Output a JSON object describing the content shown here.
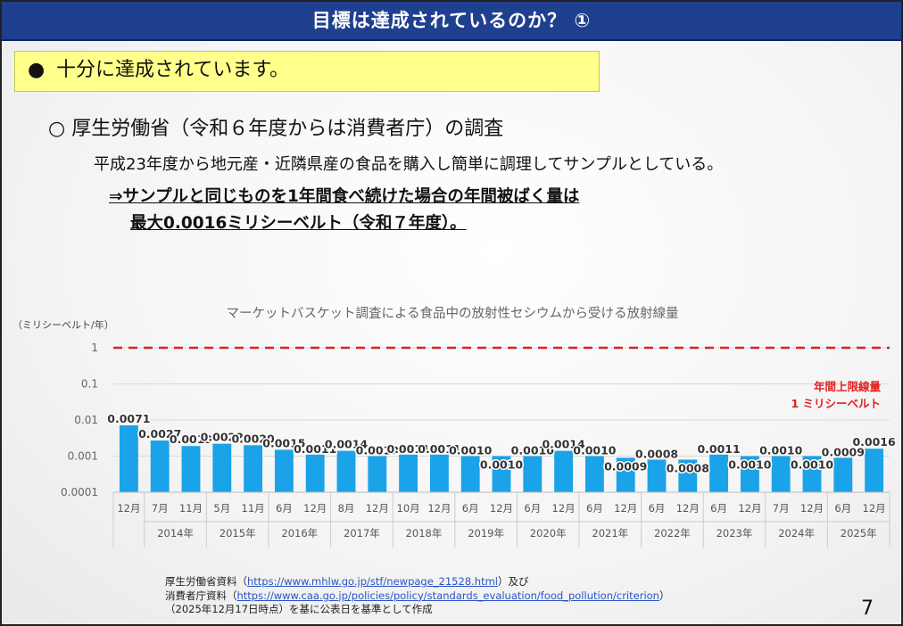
{
  "header": {
    "title": "目標は達成されているのか？ ①"
  },
  "highlight": {
    "bullet": "●",
    "text": "十分に達成されています。"
  },
  "section": {
    "heading": "○ 厚生労働省（令和６年度からは消費者庁）の調査",
    "description": "平成23年度から地元産・近隣県産の食品を購入し簡単に調理してサンプルとしている。",
    "conclusion_line1": "⇒サンプルと同じものを1年間食べ続けた場合の年間被ばく量は",
    "conclusion_line2": "最大0.0016ミリシーベルト（令和７年度）。"
  },
  "chart_data": {
    "type": "bar",
    "title": "マーケットバスケット調査による食品中の放射性セシウムから受ける放射線量",
    "ylabel": "（ミリシーベルト/年）",
    "yscale": "log",
    "ylim": [
      0.0001,
      1
    ],
    "yticks": [
      "1",
      "0.1",
      "0.01",
      "0.001",
      "0.0001"
    ],
    "ytick_values": [
      1,
      0.1,
      0.01,
      0.001,
      0.0001
    ],
    "bar_color": "#1aa3e8",
    "reference_line": {
      "value": 1,
      "color": "#e02020",
      "label1": "年間上限線量",
      "label2": "1 ミリシーベルト"
    },
    "categories": [
      "12月",
      "7月",
      "11月",
      "5月",
      "11月",
      "6月",
      "12月",
      "8月",
      "12月",
      "10月",
      "12月",
      "6月",
      "12月",
      "6月",
      "12月",
      "6月",
      "12月",
      "6月",
      "12月",
      "6月",
      "12月",
      "7月",
      "12月",
      "6月",
      "12月"
    ],
    "values": [
      0.0071,
      0.0027,
      0.0019,
      0.0022,
      0.002,
      0.0015,
      0.0011,
      0.0014,
      0.001,
      0.0011,
      0.0011,
      0.001,
      0.001,
      0.001,
      0.0014,
      0.001,
      0.0009,
      0.0008,
      0.0008,
      0.0011,
      0.001,
      0.001,
      0.001,
      0.0009,
      0.0016
    ],
    "value_labels": [
      "0.0071",
      "0.0027",
      "0.0019",
      "0.0022",
      "0.0020",
      "0.0015",
      "0.0011",
      "0.0014",
      "0.0010",
      "0.0011",
      "0.0011",
      "0.0010",
      "0.0010",
      "0.0010",
      "0.0014",
      "0.0010",
      "0.0009",
      "0.0008",
      "0.0008",
      "0.0011",
      "0.0010",
      "0.0010",
      "0.0010",
      "0.0009",
      "0.0016"
    ],
    "year_groups": [
      {
        "label": "",
        "count": 1
      },
      {
        "label": "2014年",
        "count": 2
      },
      {
        "label": "2015年",
        "count": 2
      },
      {
        "label": "2016年",
        "count": 2
      },
      {
        "label": "2017年",
        "count": 2
      },
      {
        "label": "2018年",
        "count": 2
      },
      {
        "label": "2019年",
        "count": 2
      },
      {
        "label": "2020年",
        "count": 2
      },
      {
        "label": "2021年",
        "count": 2
      },
      {
        "label": "2022年",
        "count": 2
      },
      {
        "label": "2023年",
        "count": 2
      },
      {
        "label": "2024年",
        "count": 2
      },
      {
        "label": "2025年",
        "count": 2
      }
    ]
  },
  "footer": {
    "line1_prefix": "厚生労働省資料（",
    "line1_link": "https://www.mhlw.go.jp/stf/newpage_21528.html",
    "line1_suffix": "）及び",
    "line2_prefix": "消費者庁資料（",
    "line2_link": "https://www.caa.go.jp/policies/policy/standards_evaluation/food_pollution/criterion",
    "line2_suffix": "）",
    "line3": "（2025年12月17日時点）を基に公表日を基準として作成"
  },
  "page_number": "7"
}
